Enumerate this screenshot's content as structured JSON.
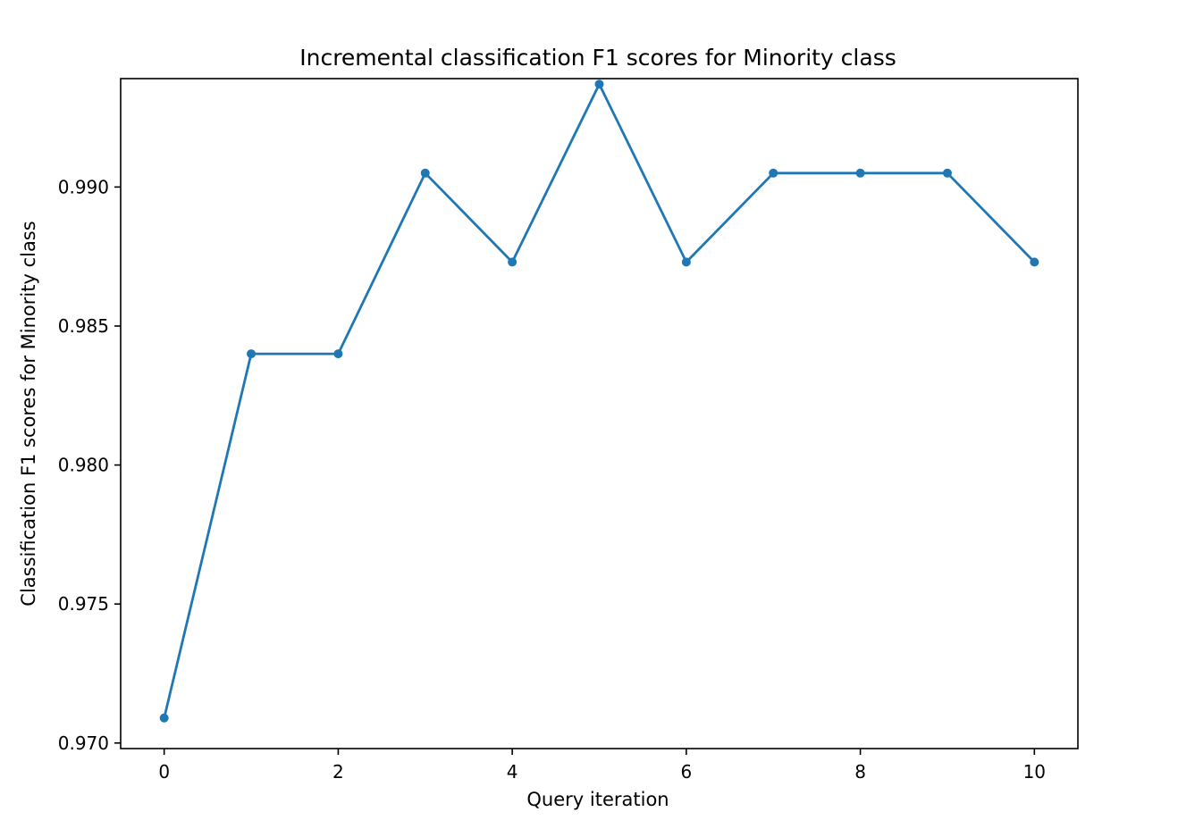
{
  "chart_data": {
    "type": "line",
    "title": "Incremental classification F1 scores for Minority class",
    "xlabel": "Query iteration",
    "ylabel": "Classification F1 scores for Minority class",
    "xlim": [
      -0.5,
      10.5
    ],
    "ylim": [
      0.9698,
      0.9939
    ],
    "x_ticks": [
      0,
      2,
      4,
      6,
      8,
      10
    ],
    "x_tick_labels": [
      "0",
      "2",
      "4",
      "6",
      "8",
      "10"
    ],
    "y_ticks": [
      0.97,
      0.975,
      0.98,
      0.985,
      0.99
    ],
    "y_tick_labels": [
      "0.970",
      "0.975",
      "0.980",
      "0.985",
      "0.990"
    ],
    "grid": false,
    "legend": "none",
    "series": [
      {
        "color": "#1f77b4",
        "marker": "circle",
        "x": [
          0,
          1,
          2,
          3,
          4,
          5,
          6,
          7,
          8,
          9,
          10
        ],
        "y": [
          0.9709,
          0.984,
          0.984,
          0.9905,
          0.9873,
          0.9937,
          0.9873,
          0.9905,
          0.9905,
          0.9905,
          0.9873
        ]
      }
    ]
  }
}
